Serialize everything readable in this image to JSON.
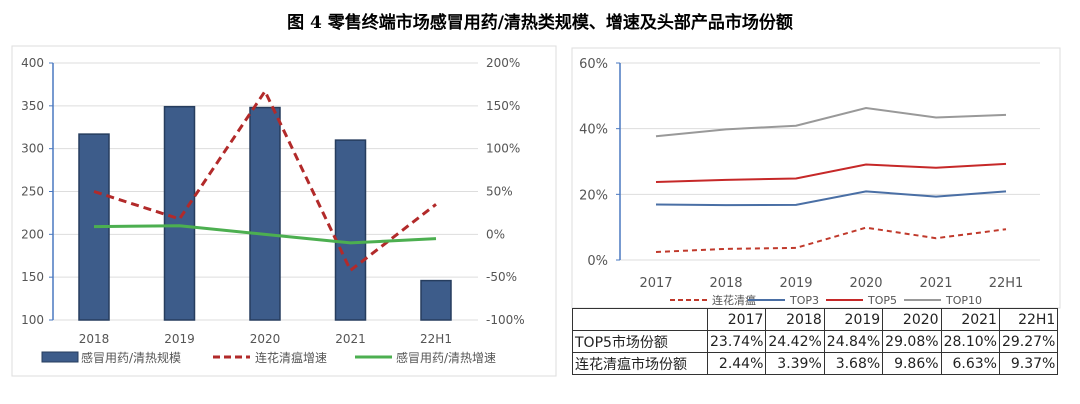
{
  "title": "图 4  零售终端市场感冒用药/清热类规模、增速及头部产品市场份额",
  "chart_data": [
    {
      "type": "bar+line",
      "categories": [
        "2018",
        "2019",
        "2020",
        "2021",
        "22H1"
      ],
      "y_left": {
        "ylim": [
          100,
          400
        ],
        "ticks": [
          "400",
          "350",
          "300",
          "250",
          "200",
          "150",
          "100"
        ]
      },
      "y_right": {
        "ylim": [
          -100,
          200
        ],
        "ticks": [
          "200%",
          "150%",
          "100%",
          "50%",
          "0%",
          "-50%",
          "-100%"
        ]
      },
      "series": [
        {
          "name": "感冒用药/清热规模",
          "type": "bar",
          "axis": "left",
          "color": "#3d5c8a",
          "values": [
            317,
            349,
            348,
            310,
            146
          ]
        },
        {
          "name": "连花清瘟增速",
          "type": "line-dashed",
          "axis": "right",
          "color": "#b22a2a",
          "values": [
            50,
            18,
            167,
            -42,
            35
          ]
        },
        {
          "name": "感冒用药/清热增速",
          "type": "line",
          "axis": "right",
          "color": "#4caf50",
          "values": [
            9,
            10,
            0,
            -10,
            -5
          ]
        }
      ],
      "legend": "bottom"
    },
    {
      "type": "line",
      "categories": [
        "2017",
        "2018",
        "2019",
        "2020",
        "2021",
        "22H1"
      ],
      "ylim": [
        0,
        60
      ],
      "ticks": [
        "60%",
        "40%",
        "20%",
        "0%"
      ],
      "series": [
        {
          "name": "连花清瘟",
          "style": "dashed",
          "color": "#c0392b",
          "values": [
            2.44,
            3.39,
            3.68,
            9.86,
            6.63,
            9.37
          ]
        },
        {
          "name": "TOP3",
          "color": "#4a6fa5",
          "values": [
            16.9,
            16.7,
            16.8,
            20.9,
            19.3,
            20.9
          ]
        },
        {
          "name": "TOP5",
          "color": "#c62828",
          "values": [
            23.74,
            24.42,
            24.84,
            29.08,
            28.1,
            29.27
          ]
        },
        {
          "name": "TOP10",
          "color": "#999999",
          "values": [
            37.7,
            39.8,
            40.9,
            46.3,
            43.4,
            44.2
          ]
        }
      ],
      "legend": "bottom"
    }
  ],
  "table": {
    "header": [
      "",
      "2017",
      "2018",
      "2019",
      "2020",
      "2021",
      "22H1"
    ],
    "rows": [
      [
        "TOP5市场份额",
        "23.74%",
        "24.42%",
        "24.84%",
        "29.08%",
        "28.10%",
        "29.27%"
      ],
      [
        "连花清瘟市场份额",
        "2.44%",
        "3.39%",
        "3.68%",
        "9.86%",
        "6.63%",
        "9.37%"
      ]
    ]
  }
}
